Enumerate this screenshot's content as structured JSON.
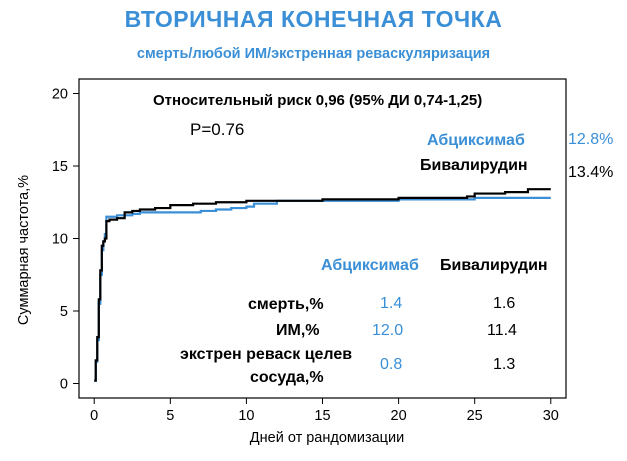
{
  "title": "ВТОРИЧНАЯ КОНЕЧНАЯ ТОЧКА",
  "subtitle": "смерть/любой ИМ/экстренная реваскуляризация",
  "colors": {
    "title": "#3a8fd6",
    "abciximab": "#3a8fd6",
    "bivalirudin": "#000000",
    "axis": "#000000"
  },
  "annotations": {
    "relative_risk": "Относительный риск 0,96 (95% ДИ 0,74-1,25)",
    "p_value": "P=0.76"
  },
  "legend": {
    "abciximab_label": "Абциксимаб",
    "abciximab_value": "12.8%",
    "bivalirudin_label": "Бивалирудин",
    "bivalirudin_value": "13.4%"
  },
  "table": {
    "headers": [
      "Абциксимаб",
      "Бивалирудин"
    ],
    "rows": [
      {
        "label": "смерть,%",
        "abciximab": "1.4",
        "bivalirudin": "1.6"
      },
      {
        "label": "ИМ,%",
        "abciximab": "12.0",
        "bivalirudin": "11.4"
      },
      {
        "label": "экстрен реваск целев",
        "abciximab": "0.8",
        "bivalirudin": "1.3"
      },
      {
        "label": "сосуда,%",
        "abciximab": "",
        "bivalirudin": ""
      }
    ]
  },
  "chart_data": {
    "type": "line",
    "title": "ВТОРИЧНАЯ КОНЕЧНАЯ ТОЧКА",
    "subtitle": "смерть/любой ИМ/экстренная реваскуляризация",
    "xlabel": "Дней от рандомизации",
    "ylabel": "Суммарная частота,%",
    "xlim": [
      -1,
      31
    ],
    "ylim": [
      -1,
      21
    ],
    "xticks": [
      0,
      5,
      10,
      15,
      20,
      25,
      30
    ],
    "yticks": [
      0,
      5,
      10,
      15,
      20
    ],
    "grid": false,
    "step": true,
    "series": [
      {
        "name": "Абциксимаб",
        "x": [
          0,
          0.1,
          0.2,
          0.3,
          0.4,
          0.5,
          0.6,
          0.7,
          0.8,
          1.0,
          1.5,
          2,
          2.5,
          3,
          5,
          7,
          8,
          9,
          10,
          10.5,
          12,
          20,
          25,
          30
        ],
        "y": [
          0.2,
          1.5,
          3.0,
          5.5,
          7.5,
          9.2,
          9.8,
          10.3,
          11.5,
          11.5,
          11.6,
          11.6,
          11.7,
          11.8,
          11.8,
          11.9,
          12.0,
          12.1,
          12.2,
          12.4,
          12.6,
          12.7,
          12.8,
          12.8
        ]
      },
      {
        "name": "Бивалирудин",
        "x": [
          0,
          0.1,
          0.2,
          0.3,
          0.4,
          0.5,
          0.6,
          0.7,
          0.8,
          1.0,
          1.5,
          2,
          2.5,
          3,
          4,
          5,
          6.5,
          8,
          10,
          12,
          15,
          20,
          24.5,
          25,
          27,
          28.5,
          30
        ],
        "y": [
          0.2,
          1.6,
          3.2,
          5.8,
          7.8,
          9.5,
          9.8,
          10.0,
          11.2,
          11.3,
          11.4,
          11.8,
          11.9,
          12.0,
          12.1,
          12.3,
          12.4,
          12.5,
          12.6,
          12.6,
          12.7,
          12.8,
          12.9,
          13.1,
          13.2,
          13.4,
          13.4
        ]
      }
    ]
  }
}
